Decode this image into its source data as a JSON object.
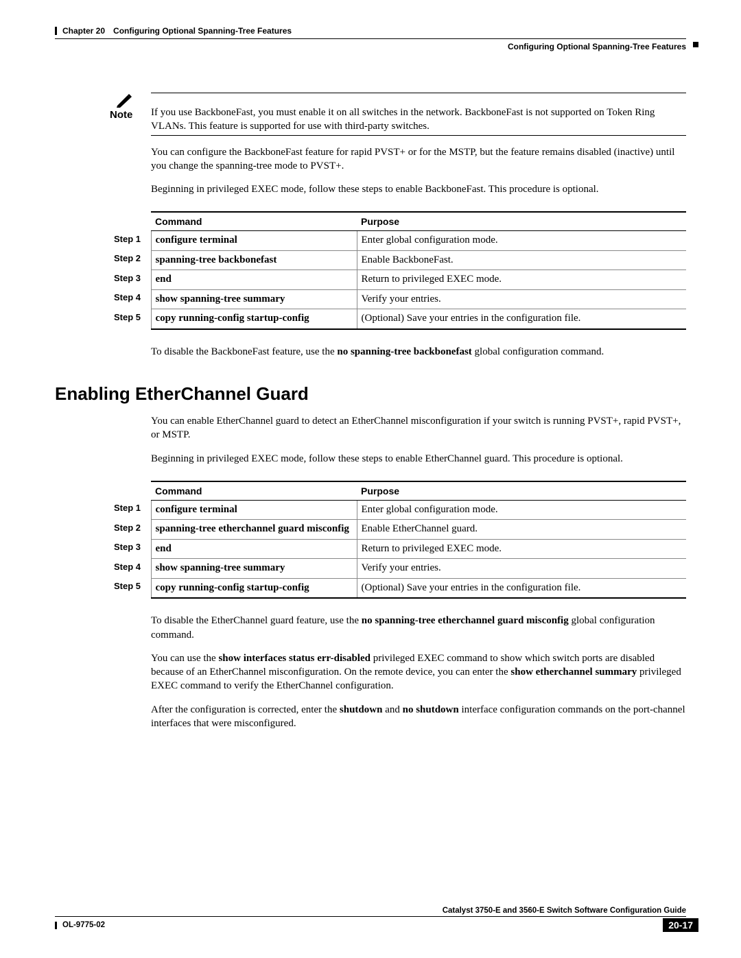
{
  "header": {
    "chapter": "Chapter 20",
    "title": "Configuring Optional Spanning-Tree Features",
    "subtitle": "Configuring Optional Spanning-Tree Features"
  },
  "note": {
    "label": "Note",
    "text": "If you use BackboneFast, you must enable it on all switches in the network. BackboneFast is not supported on Token Ring VLANs. This feature is supported for use with third-party switches."
  },
  "intro": {
    "p1": "You can configure the BackboneFast feature for rapid PVST+ or for the MSTP, but the feature remains disabled (inactive) until you change the spanning-tree mode to PVST+.",
    "p2": "Beginning in privileged EXEC mode, follow these steps to enable BackboneFast. This procedure is optional."
  },
  "table1": {
    "header_command": "Command",
    "header_purpose": "Purpose",
    "rows": [
      {
        "step": "Step 1",
        "command": "configure terminal",
        "purpose": "Enter global configuration mode."
      },
      {
        "step": "Step 2",
        "command": "spanning-tree backbonefast",
        "purpose": "Enable BackboneFast."
      },
      {
        "step": "Step 3",
        "command": "end",
        "purpose": "Return to privileged EXEC mode."
      },
      {
        "step": "Step 4",
        "command": "show spanning-tree summary",
        "purpose": "Verify your entries."
      },
      {
        "step": "Step 5",
        "command": "copy running-config startup-config",
        "purpose": "(Optional) Save your entries in the configuration file."
      }
    ]
  },
  "closing1": {
    "pre": "To disable the BackboneFast feature, use the ",
    "bold": "no spanning-tree backbonefast",
    "post": " global configuration command."
  },
  "heading2": "Enabling EtherChannel Guard",
  "intro2": {
    "p1": "You can enable EtherChannel guard to detect an EtherChannel misconfiguration if your switch is running PVST+, rapid PVST+, or MSTP.",
    "p2": "Beginning in privileged EXEC mode, follow these steps to enable EtherChannel guard. This procedure is optional."
  },
  "table2": {
    "header_command": "Command",
    "header_purpose": "Purpose",
    "rows": [
      {
        "step": "Step 1",
        "command": "configure terminal",
        "purpose": "Enter global configuration mode."
      },
      {
        "step": "Step 2",
        "command": "spanning-tree etherchannel guard misconfig",
        "purpose": "Enable EtherChannel guard."
      },
      {
        "step": "Step 3",
        "command": "end",
        "purpose": "Return to privileged EXEC mode."
      },
      {
        "step": "Step 4",
        "command": "show spanning-tree summary",
        "purpose": "Verify your entries."
      },
      {
        "step": "Step 5",
        "command": "copy running-config startup-config",
        "purpose": "(Optional) Save your entries in the configuration file."
      }
    ]
  },
  "closing2": {
    "p1_pre": "To disable the EtherChannel guard feature, use the ",
    "p1_bold": "no spanning-tree etherchannel guard misconfig",
    "p1_post": " global configuration command.",
    "p2_pre": "You can use the ",
    "p2_bold1": "show interfaces status err-disabled",
    "p2_mid": " privileged EXEC command to show which switch ports are disabled because of an EtherChannel misconfiguration. On the remote device, you can enter the ",
    "p2_bold2": "show etherchannel summary",
    "p2_post": " privileged EXEC command to verify the EtherChannel configuration.",
    "p3_pre": "After the configuration is corrected, enter the ",
    "p3_bold1": "shutdown",
    "p3_mid": " and ",
    "p3_bold2": "no shutdown",
    "p3_post": " interface configuration commands on the port-channel interfaces that were misconfigured."
  },
  "footer": {
    "guide": "Catalyst 3750-E and 3560-E Switch Software Configuration Guide",
    "doc_id": "OL-9775-02",
    "page": "20-17"
  }
}
